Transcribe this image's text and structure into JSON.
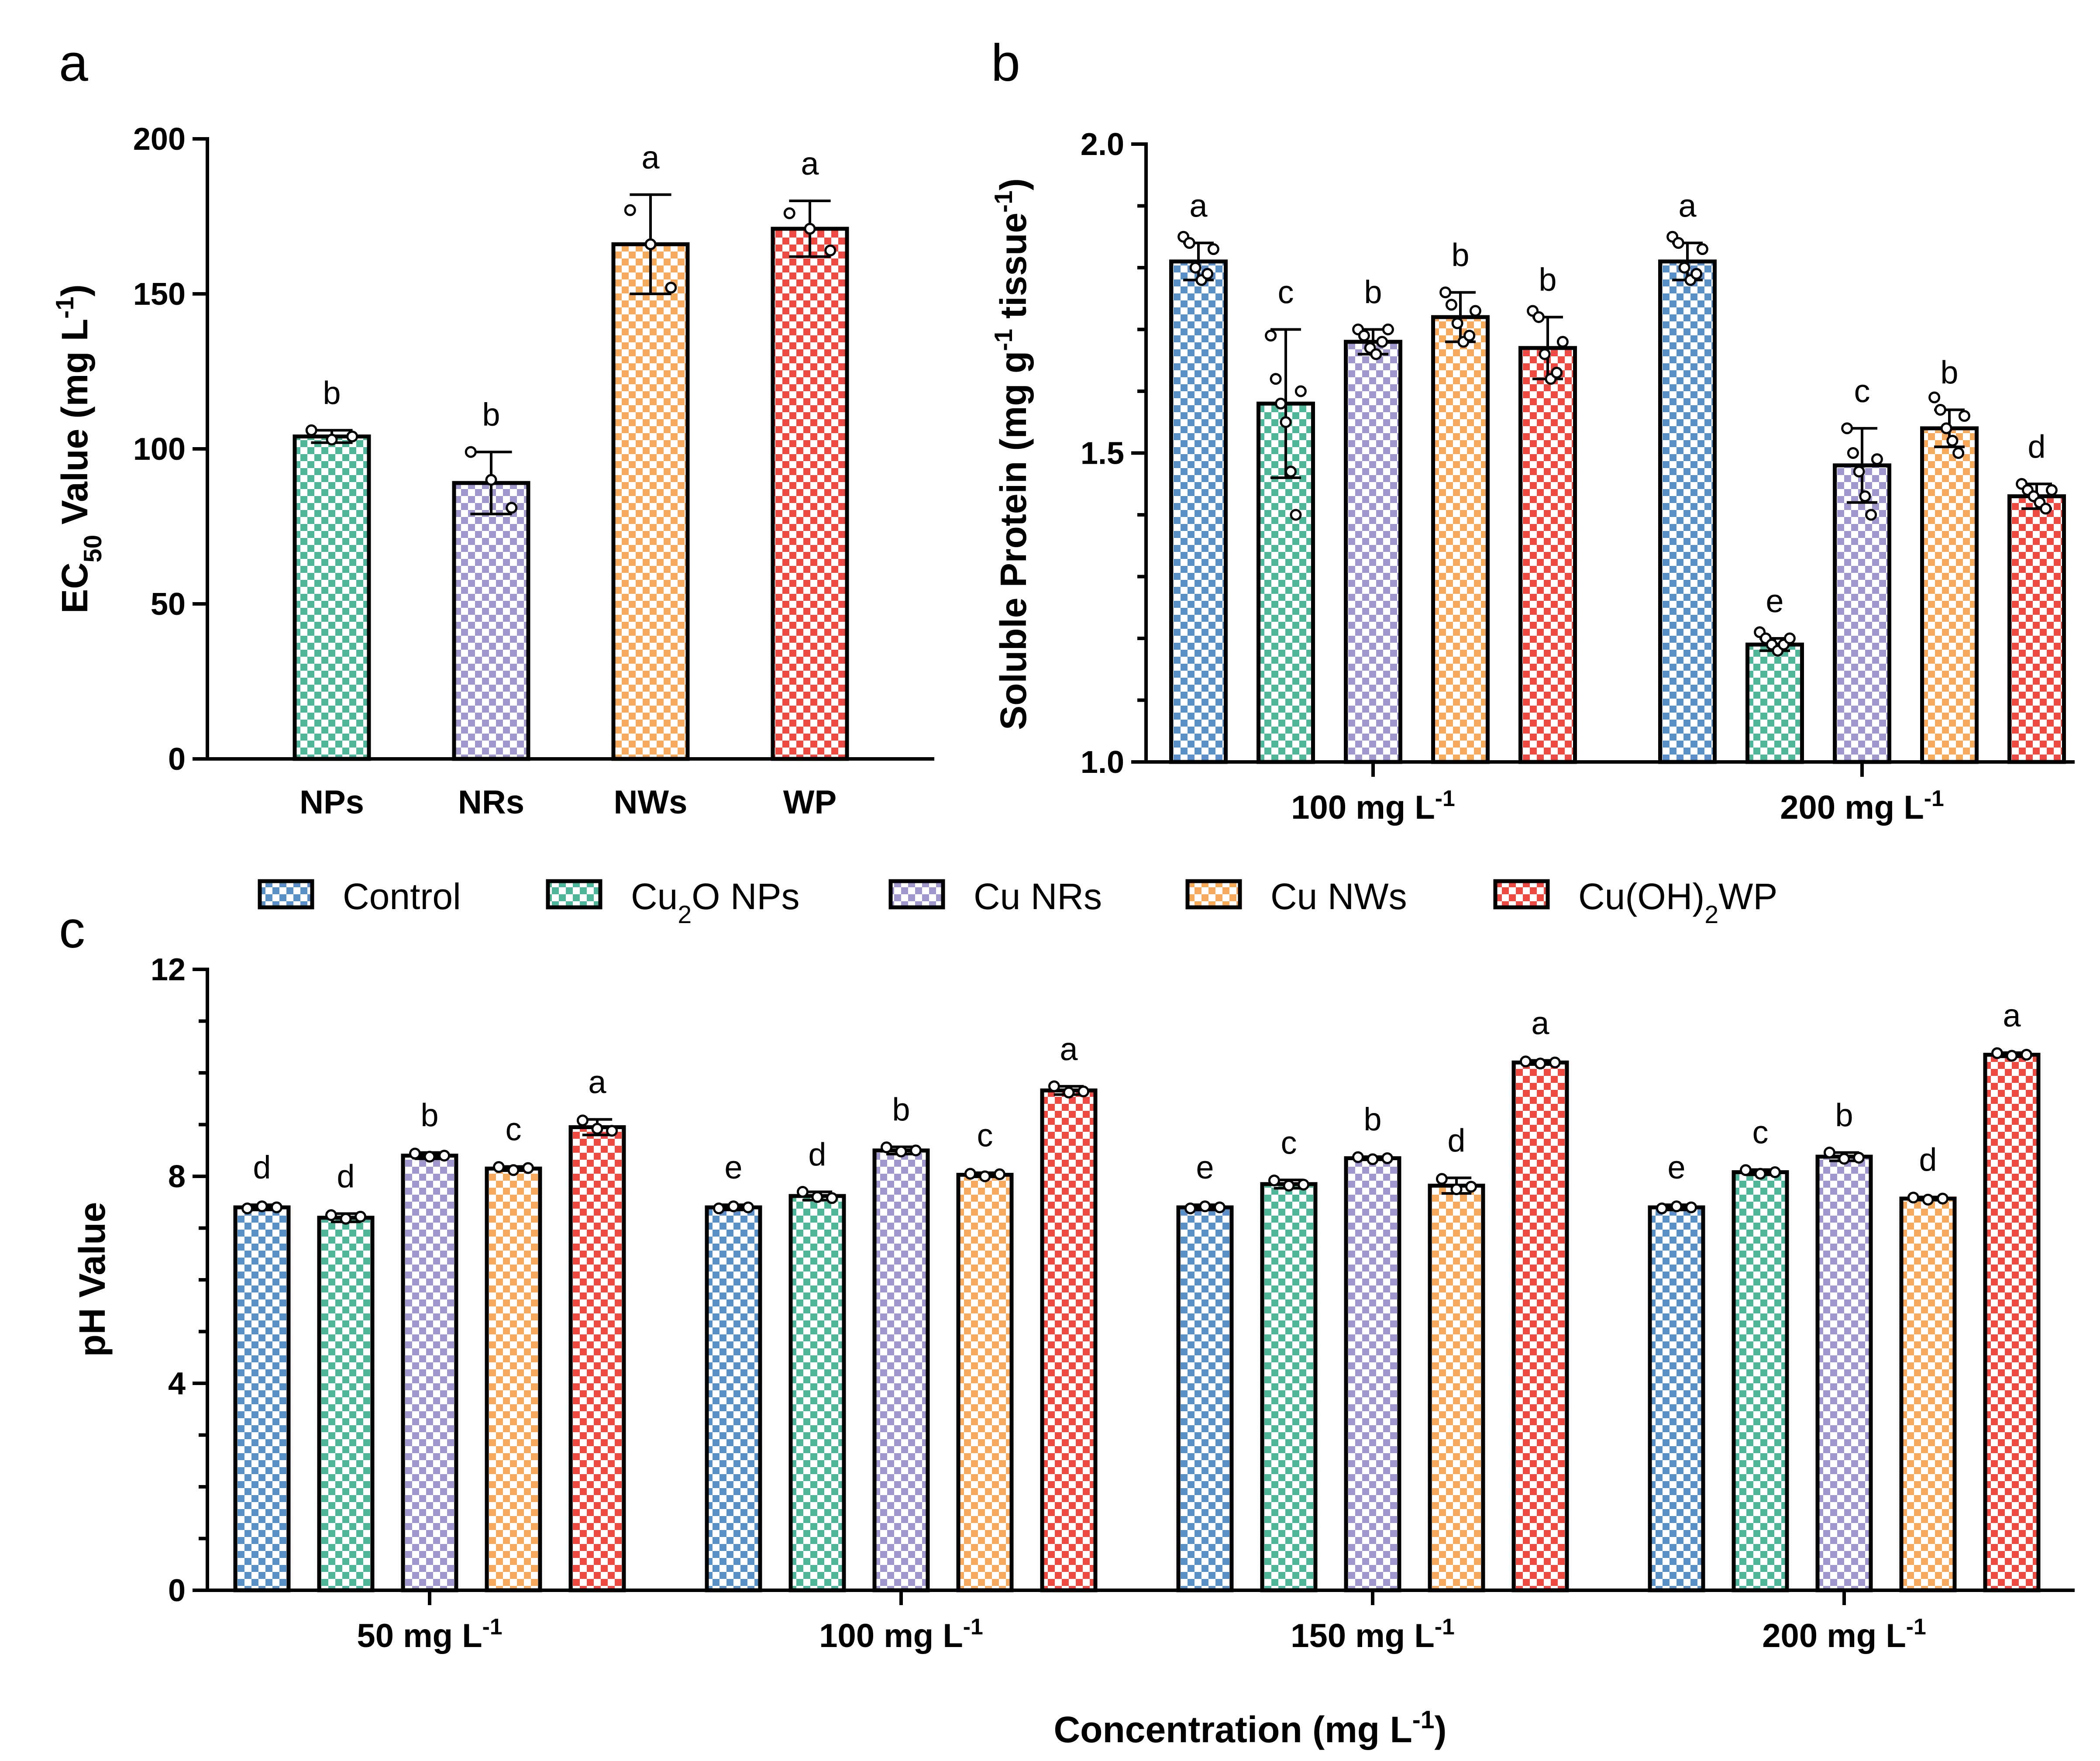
{
  "colors": {
    "Control": "#5b8fc7",
    "Cu2O NPs": "#4fb69a",
    "Cu NRs": "#9f98cc",
    "Cu NWs": "#f5a95b",
    "Cu(OH)2WP": "#ec4a43"
  },
  "legend": {
    "items": [
      {
        "key": "Control",
        "label_parts": [
          {
            "t": "Control"
          }
        ]
      },
      {
        "key": "Cu2O NPs",
        "label_parts": [
          {
            "t": "Cu"
          },
          {
            "t": "2",
            "sub": true
          },
          {
            "t": "O NPs"
          }
        ]
      },
      {
        "key": "Cu NRs",
        "label_parts": [
          {
            "t": "Cu NRs"
          }
        ]
      },
      {
        "key": "Cu NWs",
        "label_parts": [
          {
            "t": "Cu NWs"
          }
        ]
      },
      {
        "key": "Cu(OH)2WP",
        "label_parts": [
          {
            "t": "Cu(OH)"
          },
          {
            "t": "2",
            "sub": true
          },
          {
            "t": "WP"
          }
        ]
      }
    ]
  },
  "chart_data": [
    {
      "id": "a",
      "panel_label": "a",
      "type": "bar",
      "ylabel_parts": [
        {
          "t": "EC"
        },
        {
          "t": "50",
          "sub": true
        },
        {
          "t": " Value (mg L"
        },
        {
          "t": "-1",
          "sup": true
        },
        {
          "t": ")"
        }
      ],
      "ylim": [
        0,
        200
      ],
      "yticks": [
        0,
        50,
        100,
        150,
        200
      ],
      "ytick_labels": [
        "0",
        "50",
        "100",
        "150",
        "200"
      ],
      "minor_ticks": 0,
      "categories": [
        "NPs",
        "NRs",
        "NWs",
        "WP"
      ],
      "bars": [
        {
          "category": "NPs",
          "series": "Cu2O NPs",
          "value": 104,
          "sd": 2,
          "points": [
            106,
            103,
            104
          ],
          "letter": "b"
        },
        {
          "category": "NRs",
          "series": "Cu NRs",
          "value": 89,
          "sd": 10,
          "points": [
            99,
            90,
            81
          ],
          "letter": "b"
        },
        {
          "category": "NWs",
          "series": "Cu NWs",
          "value": 166,
          "sd": 16,
          "points": [
            177,
            166,
            152
          ],
          "letter": "a"
        },
        {
          "category": "WP",
          "series": "Cu(OH)2WP",
          "value": 171,
          "sd": 9,
          "points": [
            176,
            171,
            164
          ],
          "letter": "a"
        }
      ]
    },
    {
      "id": "b",
      "panel_label": "b",
      "type": "bar",
      "ylabel_parts": [
        {
          "t": "Soluble Protein (mg g"
        },
        {
          "t": "-1",
          "sup": true
        },
        {
          "t": " tissue"
        },
        {
          "t": "-1",
          "sup": true
        },
        {
          "t": ")"
        }
      ],
      "ylim": [
        1.0,
        2.0
      ],
      "yticks": [
        1.0,
        1.5,
        2.0
      ],
      "ytick_labels": [
        "1.0",
        "1.5",
        "2.0"
      ],
      "minor_ticks": 4,
      "series": [
        "Control",
        "Cu2O NPs",
        "Cu NRs",
        "Cu NWs",
        "Cu(OH)2WP"
      ],
      "groups": [
        {
          "label_parts": [
            {
              "t": "100 mg L"
            },
            {
              "t": "-1",
              "sup": true
            }
          ],
          "bars": [
            {
              "value": 1.81,
              "sd": 0.03,
              "letter": "a",
              "points": [
                1.85,
                1.84,
                1.8,
                1.78,
                1.79,
                1.83
              ]
            },
            {
              "value": 1.58,
              "sd": 0.12,
              "letter": "c",
              "points": [
                1.69,
                1.62,
                1.58,
                1.55,
                1.47,
                1.4,
                1.6
              ]
            },
            {
              "value": 1.68,
              "sd": 0.02,
              "letter": "b",
              "points": [
                1.7,
                1.69,
                1.67,
                1.66,
                1.68,
                1.7
              ]
            },
            {
              "value": 1.72,
              "sd": 0.04,
              "letter": "b",
              "points": [
                1.76,
                1.74,
                1.71,
                1.68,
                1.69,
                1.73
              ]
            },
            {
              "value": 1.67,
              "sd": 0.05,
              "letter": "b",
              "points": [
                1.73,
                1.72,
                1.66,
                1.62,
                1.63,
                1.68
              ]
            }
          ]
        },
        {
          "label_parts": [
            {
              "t": "200 mg L"
            },
            {
              "t": "-1",
              "sup": true
            }
          ],
          "bars": [
            {
              "value": 1.81,
              "sd": 0.03,
              "letter": "a",
              "points": [
                1.85,
                1.84,
                1.8,
                1.78,
                1.79,
                1.83
              ]
            },
            {
              "value": 1.19,
              "sd": 0.01,
              "letter": "e",
              "points": [
                1.21,
                1.2,
                1.19,
                1.18,
                1.19,
                1.2
              ]
            },
            {
              "value": 1.48,
              "sd": 0.06,
              "letter": "c",
              "points": [
                1.54,
                1.5,
                1.47,
                1.43,
                1.4,
                1.49
              ]
            },
            {
              "value": 1.54,
              "sd": 0.03,
              "letter": "b",
              "points": [
                1.59,
                1.57,
                1.54,
                1.52,
                1.5,
                1.56
              ]
            },
            {
              "value": 1.43,
              "sd": 0.02,
              "letter": "d",
              "points": [
                1.45,
                1.44,
                1.43,
                1.42,
                1.41,
                1.44
              ]
            }
          ]
        }
      ]
    },
    {
      "id": "c",
      "panel_label": "c",
      "type": "bar",
      "ylabel_parts": [
        {
          "t": "pH Value"
        }
      ],
      "xlabel_parts": [
        {
          "t": "Concentration (mg L"
        },
        {
          "t": "-1",
          "sup": true
        },
        {
          "t": ")"
        }
      ],
      "ylim": [
        0,
        12
      ],
      "yticks": [
        0,
        4,
        8,
        12
      ],
      "ytick_labels": [
        "0",
        "4",
        "8",
        "12"
      ],
      "minor_ticks": 3,
      "series": [
        "Control",
        "Cu2O NPs",
        "Cu NRs",
        "Cu NWs",
        "Cu(OH)2WP"
      ],
      "groups": [
        {
          "label_parts": [
            {
              "t": "50 mg L"
            },
            {
              "t": "-1",
              "sup": true
            }
          ],
          "bars": [
            {
              "value": 7.4,
              "sd": 0.05,
              "letter": "d",
              "points": [
                7.38,
                7.42,
                7.4
              ]
            },
            {
              "value": 7.2,
              "sd": 0.08,
              "letter": "d",
              "points": [
                7.25,
                7.18,
                7.22
              ]
            },
            {
              "value": 8.4,
              "sd": 0.06,
              "letter": "b",
              "points": [
                8.44,
                8.38,
                8.4
              ]
            },
            {
              "value": 8.15,
              "sd": 0.04,
              "letter": "c",
              "points": [
                8.18,
                8.12,
                8.16
              ]
            },
            {
              "value": 8.95,
              "sd": 0.15,
              "letter": "a",
              "points": [
                9.08,
                8.92,
                8.88
              ]
            }
          ]
        },
        {
          "label_parts": [
            {
              "t": "100 mg L"
            },
            {
              "t": "-1",
              "sup": true
            }
          ],
          "bars": [
            {
              "value": 7.4,
              "sd": 0.05,
              "letter": "e",
              "points": [
                7.38,
                7.42,
                7.4
              ]
            },
            {
              "value": 7.62,
              "sd": 0.08,
              "letter": "d",
              "points": [
                7.7,
                7.6,
                7.58
              ]
            },
            {
              "value": 8.5,
              "sd": 0.07,
              "letter": "b",
              "points": [
                8.56,
                8.48,
                8.5
              ]
            },
            {
              "value": 8.03,
              "sd": 0.04,
              "letter": "c",
              "points": [
                8.05,
                8.0,
                8.04
              ]
            },
            {
              "value": 9.66,
              "sd": 0.08,
              "letter": "a",
              "points": [
                9.74,
                9.62,
                9.64
              ]
            }
          ]
        },
        {
          "label_parts": [
            {
              "t": "150 mg L"
            },
            {
              "t": "-1",
              "sup": true
            }
          ],
          "bars": [
            {
              "value": 7.4,
              "sd": 0.05,
              "letter": "e",
              "points": [
                7.38,
                7.42,
                7.4
              ]
            },
            {
              "value": 7.85,
              "sd": 0.08,
              "letter": "c",
              "points": [
                7.92,
                7.82,
                7.84
              ]
            },
            {
              "value": 8.35,
              "sd": 0.03,
              "letter": "b",
              "points": [
                8.37,
                8.33,
                8.35
              ]
            },
            {
              "value": 7.82,
              "sd": 0.15,
              "letter": "d",
              "points": [
                7.95,
                7.75,
                7.8
              ]
            },
            {
              "value": 10.2,
              "sd": 0.04,
              "letter": "a",
              "points": [
                10.22,
                10.18,
                10.2
              ]
            }
          ]
        },
        {
          "label_parts": [
            {
              "t": "200 mg L"
            },
            {
              "t": "-1",
              "sup": true
            }
          ],
          "bars": [
            {
              "value": 7.4,
              "sd": 0.05,
              "letter": "e",
              "points": [
                7.38,
                7.42,
                7.4
              ]
            },
            {
              "value": 8.08,
              "sd": 0.05,
              "letter": "c",
              "points": [
                8.12,
                8.05,
                8.08
              ]
            },
            {
              "value": 8.38,
              "sd": 0.08,
              "letter": "b",
              "points": [
                8.46,
                8.34,
                8.36
              ]
            },
            {
              "value": 7.57,
              "sd": 0.03,
              "letter": "d",
              "points": [
                7.59,
                7.55,
                7.57
              ]
            },
            {
              "value": 10.35,
              "sd": 0.04,
              "letter": "a",
              "points": [
                10.38,
                10.33,
                10.35
              ]
            }
          ]
        }
      ]
    }
  ]
}
